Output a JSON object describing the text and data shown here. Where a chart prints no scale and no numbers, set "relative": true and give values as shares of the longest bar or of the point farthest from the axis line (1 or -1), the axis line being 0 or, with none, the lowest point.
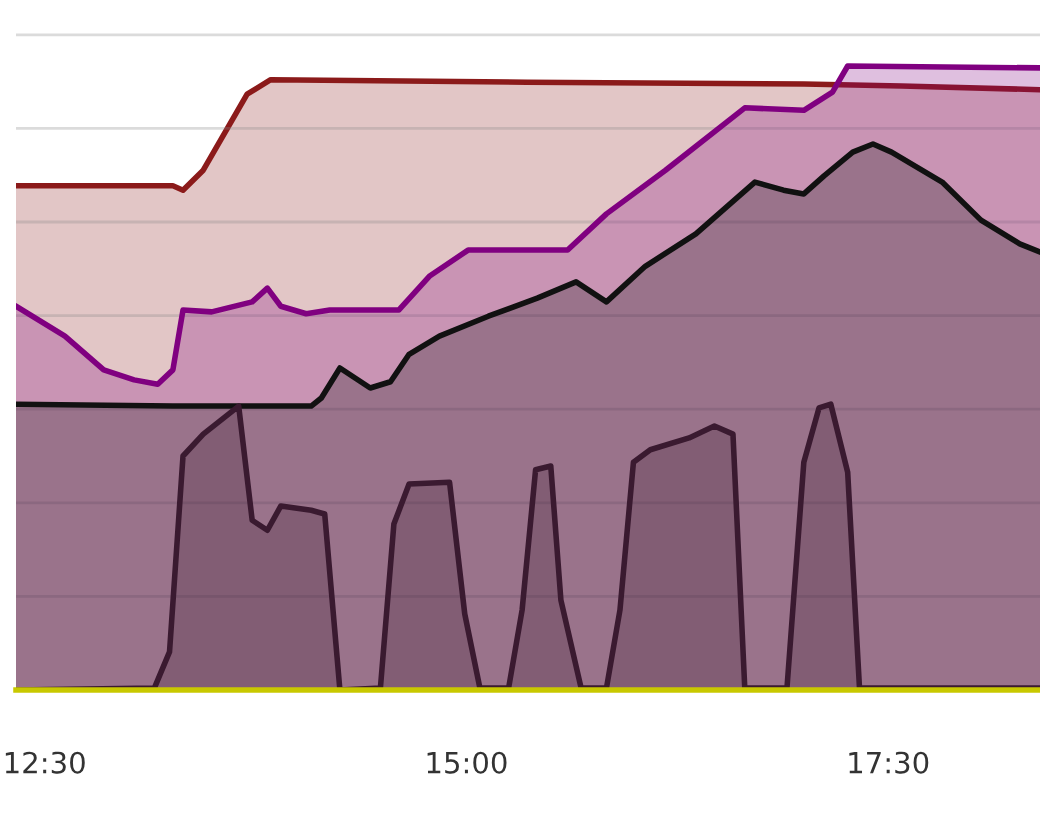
{
  "chart_data": {
    "type": "area",
    "relative": true,
    "grid": "y",
    "legend": false,
    "marker": "none",
    "line_style": "solid",
    "xlim": [
      12.33,
      18.4
    ],
    "xticks": [
      {
        "value": 12.5,
        "label": "12:30"
      },
      {
        "value": 15,
        "label": "15:00"
      },
      {
        "value": 17.5,
        "label": "17:30"
      }
    ],
    "series": [
      {
        "color": "#8b1a1a",
        "x": [
          12.33,
          13.26,
          13.32,
          13.44,
          13.7,
          13.84,
          15.36,
          17.0,
          17.58,
          18.4
        ],
        "values": [
          0.808,
          0.808,
          0.801,
          0.833,
          0.955,
          0.978,
          0.974,
          0.971,
          0.968,
          0.962
        ]
      },
      {
        "color": "#800080",
        "x": [
          12.33,
          12.62,
          12.85,
          13.03,
          13.17,
          13.26,
          13.32,
          13.49,
          13.73,
          13.82,
          13.9,
          14.05,
          14.19,
          14.6,
          14.78,
          15.01,
          15.36,
          15.6,
          15.83,
          16.18,
          16.65,
          17.0,
          17.17,
          17.26,
          18.4
        ],
        "values": [
          0.615,
          0.567,
          0.513,
          0.497,
          0.49,
          0.513,
          0.609,
          0.606,
          0.622,
          0.644,
          0.615,
          0.603,
          0.609,
          0.609,
          0.663,
          0.705,
          0.705,
          0.705,
          0.763,
          0.833,
          0.933,
          0.929,
          0.958,
          1.0,
          0.997
        ]
      },
      {
        "color": "#111111",
        "x": [
          12.33,
          13.26,
          14.08,
          14.14,
          14.25,
          14.43,
          14.55,
          14.66,
          14.84,
          15.13,
          15.42,
          15.65,
          15.83,
          16.06,
          16.36,
          16.71,
          16.88,
          17.0,
          17.12,
          17.29,
          17.41,
          17.52,
          17.82,
          18.05,
          18.28,
          18.4
        ],
        "values": [
          0.458,
          0.455,
          0.455,
          0.468,
          0.516,
          0.484,
          0.494,
          0.538,
          0.567,
          0.599,
          0.628,
          0.654,
          0.622,
          0.679,
          0.731,
          0.814,
          0.801,
          0.795,
          0.824,
          0.862,
          0.875,
          0.862,
          0.814,
          0.753,
          0.715,
          0.702
        ]
      },
      {
        "color": "#3a1a30",
        "x": [
          12.33,
          13.15,
          13.24,
          13.32,
          13.44,
          13.65,
          13.73,
          13.82,
          13.9,
          14.08,
          14.16,
          14.25,
          14.49,
          14.57,
          14.66,
          14.9,
          14.99,
          15.08,
          15.25,
          15.33,
          15.41,
          15.5,
          15.56,
          15.68,
          15.83,
          15.91,
          15.99,
          16.09,
          16.32,
          16.47,
          16.58,
          16.65,
          16.9,
          17.0,
          17.09,
          17.16,
          17.26,
          17.33,
          18.4
        ],
        "values": [
          0,
          0.003,
          0.061,
          0.375,
          0.41,
          0.455,
          0.272,
          0.256,
          0.295,
          0.288,
          0.282,
          0,
          0.003,
          0.266,
          0.33,
          0.333,
          0.122,
          0.003,
          0.003,
          0.128,
          0.353,
          0.359,
          0.144,
          0.003,
          0.003,
          0.128,
          0.365,
          0.385,
          0.404,
          0.423,
          0.41,
          0.003,
          0.003,
          0.365,
          0.452,
          0.458,
          0.349,
          0.003,
          0.003
        ]
      }
    ]
  }
}
